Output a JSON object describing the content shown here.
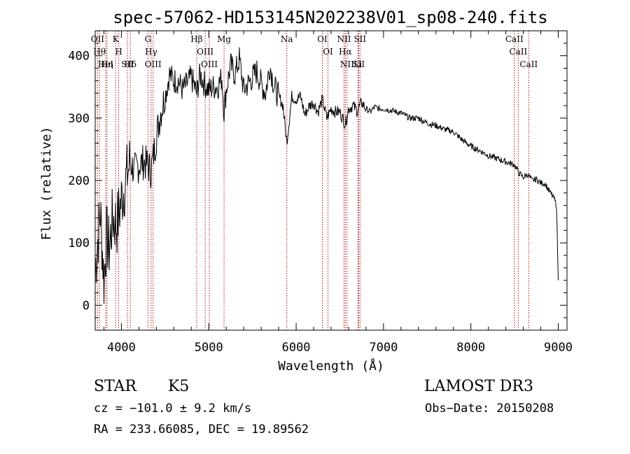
{
  "chart_data": {
    "type": "line",
    "title": "spec-57062-HD153145N202238V01_sp08-240.fits",
    "xlabel": "Wavelength (Å)",
    "ylabel": "Flux (relative)",
    "xlim": [
      3700,
      9100
    ],
    "ylim": [
      -40,
      440
    ],
    "x_ticks": [
      4000,
      5000,
      6000,
      7000,
      8000,
      9000
    ],
    "y_ticks": [
      0,
      100,
      200,
      300,
      400
    ],
    "grid": false,
    "series": [
      {
        "name": "spectrum",
        "x": [
          3700,
          3760,
          3800,
          3830,
          3860,
          3900,
          3950,
          4000,
          4050,
          4100,
          4150,
          4200,
          4250,
          4300,
          4340,
          4400,
          4450,
          4500,
          4550,
          4600,
          4650,
          4700,
          4750,
          4800,
          4861,
          4900,
          4950,
          5000,
          5050,
          5100,
          5150,
          5175,
          5200,
          5250,
          5300,
          5350,
          5400,
          5450,
          5500,
          5550,
          5600,
          5650,
          5700,
          5750,
          5800,
          5850,
          5893,
          5950,
          6000,
          6050,
          6100,
          6150,
          6200,
          6250,
          6300,
          6350,
          6400,
          6450,
          6500,
          6563,
          6600,
          6650,
          6700,
          6750,
          6800,
          6850,
          6900,
          6950,
          7000,
          7100,
          7200,
          7300,
          7400,
          7500,
          7600,
          7700,
          7800,
          7900,
          8000,
          8100,
          8200,
          8300,
          8400,
          8500,
          8550,
          8600,
          8650,
          8700,
          8750,
          8800,
          8850,
          8900,
          8950,
          8980,
          9000
        ],
        "y": [
          60,
          150,
          40,
          110,
          90,
          140,
          130,
          170,
          200,
          230,
          215,
          225,
          230,
          225,
          215,
          270,
          310,
          335,
          370,
          360,
          360,
          345,
          355,
          365,
          340,
          370,
          355,
          345,
          350,
          350,
          365,
          310,
          345,
          385,
          370,
          395,
          345,
          355,
          365,
          375,
          355,
          340,
          385,
          350,
          335,
          320,
          260,
          335,
          330,
          335,
          305,
          320,
          325,
          310,
          330,
          300,
          315,
          310,
          310,
          290,
          315,
          320,
          312,
          325,
          315,
          310,
          318,
          315,
          315,
          312,
          308,
          300,
          300,
          292,
          288,
          282,
          278,
          265,
          255,
          248,
          240,
          235,
          230,
          225,
          212,
          205,
          210,
          200,
          202,
          196,
          195,
          182,
          172,
          160,
          40
        ]
      }
    ],
    "line_markers": [
      {
        "wavelength": 3750,
        "label": "Hθ"
      },
      {
        "wavelength": 3727,
        "label": "OII"
      },
      {
        "wavelength": 3820,
        "label": "HeI"
      },
      {
        "wavelength": 3835,
        "label": "Hη"
      },
      {
        "wavelength": 3934,
        "label": "K"
      },
      {
        "wavelength": 3969,
        "label": "H"
      },
      {
        "wavelength": 4070,
        "label": "SII"
      },
      {
        "wavelength": 4102,
        "label": "Hδ"
      },
      {
        "wavelength": 4304,
        "label": "G"
      },
      {
        "wavelength": 4340,
        "label": "Hγ"
      },
      {
        "wavelength": 4363,
        "label": "OIII"
      },
      {
        "wavelength": 4861,
        "label": "Hβ"
      },
      {
        "wavelength": 4959,
        "label": "OIII"
      },
      {
        "wavelength": 5007,
        "label": "OIII"
      },
      {
        "wavelength": 5175,
        "label": "Mg"
      },
      {
        "wavelength": 5893,
        "label": "Na"
      },
      {
        "wavelength": 6300,
        "label": "OI"
      },
      {
        "wavelength": 6364,
        "label": "OI"
      },
      {
        "wavelength": 6548,
        "label": "NII"
      },
      {
        "wavelength": 6563,
        "label": "Hα"
      },
      {
        "wavelength": 6583,
        "label": "NII"
      },
      {
        "wavelength": 6707,
        "label": "Li"
      },
      {
        "wavelength": 6716,
        "label": "SII"
      },
      {
        "wavelength": 6731,
        "label": "SII"
      },
      {
        "wavelength": 8498,
        "label": "CaII"
      },
      {
        "wavelength": 8542,
        "label": "CaII"
      },
      {
        "wavelength": 8662,
        "label": "CaII"
      }
    ]
  },
  "info": {
    "object_class": "STAR",
    "subclass": "K5",
    "survey": "LAMOST DR3",
    "cz": "cz = −101.0 ± 9.2 km/s",
    "obs_date": "Obs−Date: 20150208",
    "coords": "RA = 233.66085, DEC =  19.89562"
  }
}
